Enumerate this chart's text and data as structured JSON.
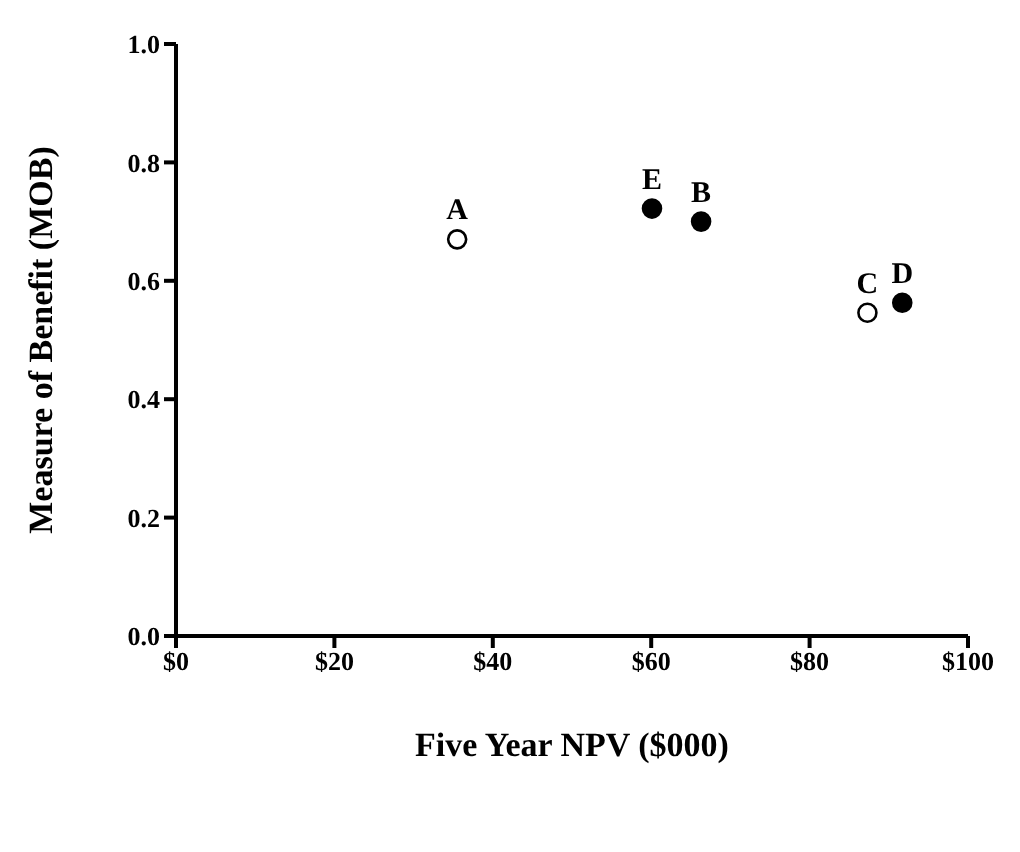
{
  "chart_data": {
    "type": "scatter",
    "xlabel": "Five Year NPV ($000)",
    "ylabel": "Measure of Benefit (MOB)",
    "xlim": [
      0,
      100
    ],
    "xticks": [
      {
        "value": 0,
        "label": "$0"
      },
      {
        "value": 20,
        "label": "$20"
      },
      {
        "value": 40,
        "label": "$40"
      },
      {
        "value": 60,
        "label": "$60"
      },
      {
        "value": 80,
        "label": "$80"
      },
      {
        "value": 100,
        "label": "$100"
      }
    ],
    "ylim": [
      0,
      1
    ],
    "yticks": [
      {
        "value": 0,
        "label": "0.0"
      },
      {
        "value": 0.2,
        "label": "0.2"
      },
      {
        "value": 0.4,
        "label": "0.4"
      },
      {
        "value": 0.6,
        "label": "0.6"
      },
      {
        "value": 0.8,
        "label": "0.8"
      },
      {
        "value": 1,
        "label": "1.0"
      }
    ],
    "grid": false,
    "legend": false,
    "marker": "circle",
    "series": [
      {
        "color": "#ffffff",
        "x": [
          35.5,
          87.3
        ],
        "values": [
          0.67,
          0.546
        ]
      },
      {
        "color": "#000000",
        "x": [
          60.1,
          66.3,
          91.7
        ],
        "values": [
          0.722,
          0.7,
          0.563
        ]
      }
    ],
    "annotations": [
      {
        "text": "A",
        "x": 35.5,
        "y": 0.67
      },
      {
        "text": "E",
        "x": 60.1,
        "y": 0.722
      },
      {
        "text": "B",
        "x": 66.3,
        "y": 0.7
      },
      {
        "text": "C",
        "x": 87.3,
        "y": 0.546
      },
      {
        "text": "D",
        "x": 91.7,
        "y": 0.563
      }
    ]
  }
}
